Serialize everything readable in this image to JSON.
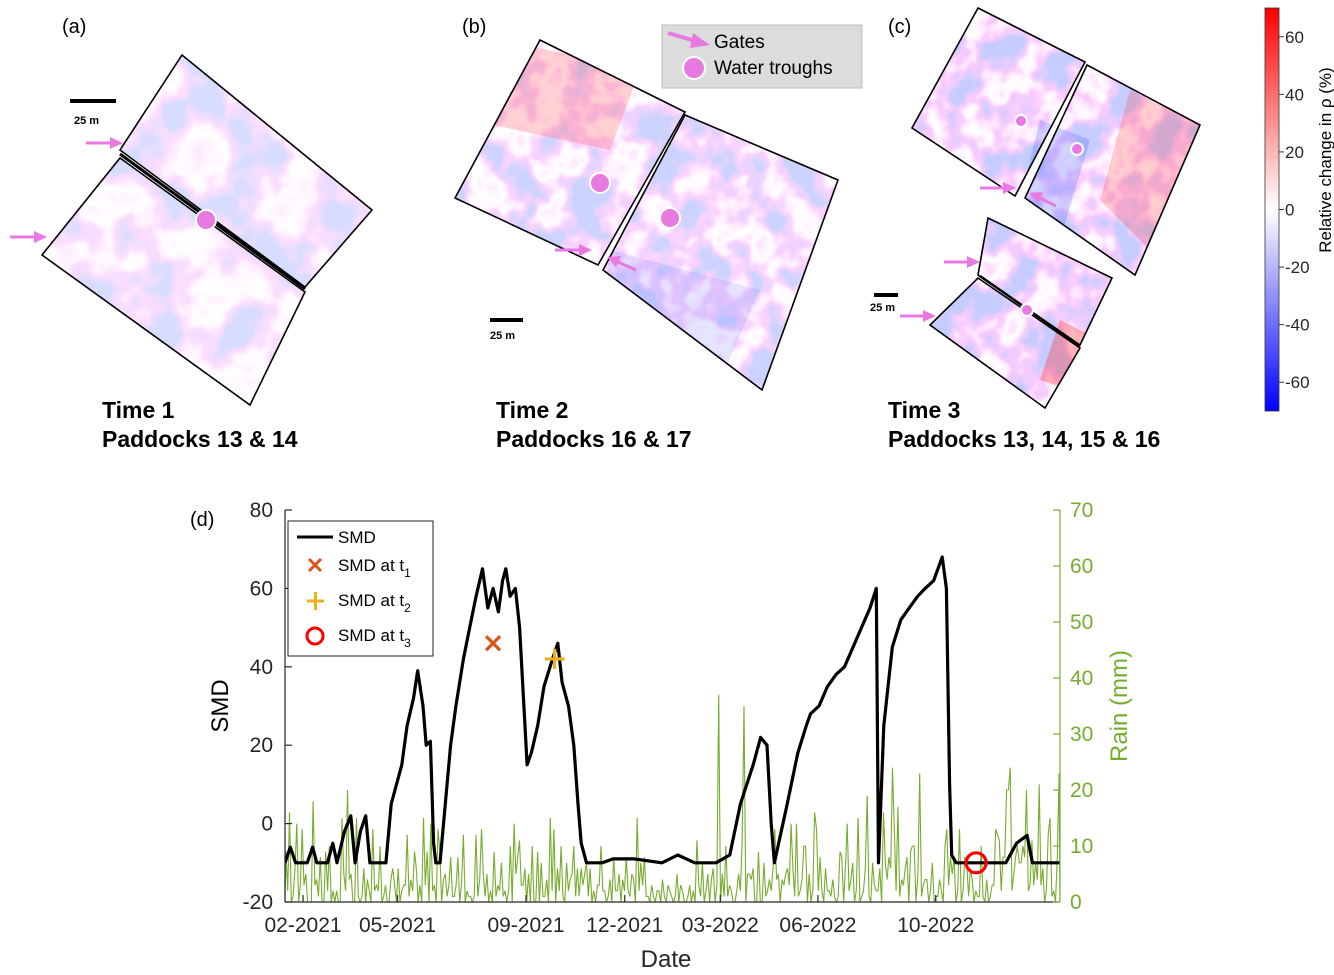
{
  "panels": [
    {
      "label": "(a)",
      "caption1": "Time 1",
      "caption2": "Paddocks 13 & 14",
      "scale": "25 m"
    },
    {
      "label": "(b)",
      "caption1": "Time 2",
      "caption2": "Paddocks 16 & 17",
      "scale": "25 m"
    },
    {
      "label": "(c)",
      "caption1": "Time 3",
      "caption2": "Paddocks 13, 14, 15 & 16",
      "scale": "25 m"
    }
  ],
  "map_legend": {
    "gates": "Gates",
    "troughs": "Water  troughs"
  },
  "colorbar": {
    "title": "Relative change in ρ (%)",
    "ticks": [
      "60",
      "40",
      "20",
      "0",
      "-20",
      "-40",
      "-60"
    ],
    "range": [
      -70,
      70
    ],
    "colors": {
      "low": "#0000ff",
      "mid": "#ffffff",
      "high": "#ff0000"
    }
  },
  "colors": {
    "gate": "#e879e0",
    "trough": "#e879e0",
    "smd": "#000000",
    "rain": "#77ac30",
    "t1": "#d95319",
    "t2": "#edb120",
    "t3": "#ff0000"
  },
  "chart_data": {
    "type": "line",
    "panel_label": "(d)",
    "xlabel": "Date",
    "ylabel": "SMD",
    "y2label": "Rain (mm)",
    "x_ticks": [
      "02-2021",
      "05-2021",
      "09-2021",
      "12-2021",
      "03-2022",
      "06-2022",
      "10-2022"
    ],
    "x_tick_dates": [
      "2021-02-01",
      "2021-05-01",
      "2021-08-30",
      "2021-12-01",
      "2022-03-01",
      "2022-06-01",
      "2022-09-20"
    ],
    "xlim": [
      "2021-01-15",
      "2023-01-15"
    ],
    "ylim": [
      -20,
      80
    ],
    "y_ticks": [
      "-20",
      "0",
      "20",
      "40",
      "60",
      "80"
    ],
    "y2lim": [
      0,
      70
    ],
    "y2_ticks": [
      "0",
      "10",
      "20",
      "30",
      "40",
      "50",
      "60",
      "70"
    ],
    "legend": {
      "position": "top-left",
      "entries": [
        "SMD",
        "SMD at t1",
        "SMD at t2",
        "SMD at t3"
      ]
    },
    "series": [
      {
        "name": "SMD",
        "axis": "left",
        "color": "#000000",
        "points": [
          [
            "2021-01-15",
            -10
          ],
          [
            "2021-01-20",
            -6
          ],
          [
            "2021-01-25",
            -10
          ],
          [
            "2021-02-05",
            -10
          ],
          [
            "2021-02-10",
            -6
          ],
          [
            "2021-02-14",
            -10
          ],
          [
            "2021-02-24",
            -10
          ],
          [
            "2021-03-01",
            -5
          ],
          [
            "2021-03-05",
            -10
          ],
          [
            "2021-03-12",
            -2
          ],
          [
            "2021-03-18",
            2
          ],
          [
            "2021-03-22",
            -10
          ],
          [
            "2021-03-27",
            -2
          ],
          [
            "2021-04-01",
            2
          ],
          [
            "2021-04-05",
            -10
          ],
          [
            "2021-04-20",
            -10
          ],
          [
            "2021-04-25",
            5
          ],
          [
            "2021-04-30",
            10
          ],
          [
            "2021-05-05",
            15
          ],
          [
            "2021-05-10",
            25
          ],
          [
            "2021-05-16",
            32
          ],
          [
            "2021-05-20",
            39
          ],
          [
            "2021-05-25",
            30
          ],
          [
            "2021-05-28",
            20
          ],
          [
            "2021-06-01",
            21
          ],
          [
            "2021-06-04",
            -5
          ],
          [
            "2021-06-06",
            -10
          ],
          [
            "2021-06-10",
            -10
          ],
          [
            "2021-06-15",
            5
          ],
          [
            "2021-06-20",
            20
          ],
          [
            "2021-06-25",
            30
          ],
          [
            "2021-07-02",
            42
          ],
          [
            "2021-07-08",
            50
          ],
          [
            "2021-07-14",
            58
          ],
          [
            "2021-07-20",
            65
          ],
          [
            "2021-07-25",
            55
          ],
          [
            "2021-07-30",
            60
          ],
          [
            "2021-08-04",
            54
          ],
          [
            "2021-08-08",
            62
          ],
          [
            "2021-08-11",
            65
          ],
          [
            "2021-08-15",
            58
          ],
          [
            "2021-08-20",
            60
          ],
          [
            "2021-08-24",
            50
          ],
          [
            "2021-08-28",
            30
          ],
          [
            "2021-08-31",
            15
          ],
          [
            "2021-09-04",
            18
          ],
          [
            "2021-09-10",
            25
          ],
          [
            "2021-09-16",
            35
          ],
          [
            "2021-09-24",
            42
          ],
          [
            "2021-09-29",
            46
          ],
          [
            "2021-10-03",
            36
          ],
          [
            "2021-10-09",
            30
          ],
          [
            "2021-10-14",
            20
          ],
          [
            "2021-10-18",
            5
          ],
          [
            "2021-10-21",
            -5
          ],
          [
            "2021-10-26",
            -10
          ],
          [
            "2021-11-10",
            -10
          ],
          [
            "2021-11-20",
            -9
          ],
          [
            "2021-12-10",
            -9
          ],
          [
            "2022-01-05",
            -10
          ],
          [
            "2022-01-20",
            -8
          ],
          [
            "2022-02-05",
            -10
          ],
          [
            "2022-02-25",
            -10
          ],
          [
            "2022-03-10",
            -8
          ],
          [
            "2022-03-20",
            5
          ],
          [
            "2022-04-01",
            15
          ],
          [
            "2022-04-08",
            22
          ],
          [
            "2022-04-14",
            20
          ],
          [
            "2022-04-18",
            0
          ],
          [
            "2022-04-21",
            -10
          ],
          [
            "2022-05-03",
            5
          ],
          [
            "2022-05-13",
            18
          ],
          [
            "2022-05-21",
            25
          ],
          [
            "2022-05-25",
            28
          ],
          [
            "2022-06-02",
            30
          ],
          [
            "2022-06-10",
            35
          ],
          [
            "2022-06-18",
            38
          ],
          [
            "2022-06-26",
            40
          ],
          [
            "2022-07-04",
            45
          ],
          [
            "2022-07-12",
            50
          ],
          [
            "2022-07-20",
            55
          ],
          [
            "2022-07-26",
            60
          ],
          [
            "2022-07-28",
            -10
          ],
          [
            "2022-08-02",
            25
          ],
          [
            "2022-08-10",
            45
          ],
          [
            "2022-08-18",
            52
          ],
          [
            "2022-08-26",
            55
          ],
          [
            "2022-09-03",
            58
          ],
          [
            "2022-09-10",
            60
          ],
          [
            "2022-09-18",
            62
          ],
          [
            "2022-09-26",
            68
          ],
          [
            "2022-09-30",
            60
          ],
          [
            "2022-10-03",
            10
          ],
          [
            "2022-10-05",
            -8
          ],
          [
            "2022-10-09",
            -10
          ],
          [
            "2022-10-20",
            -10
          ],
          [
            "2022-11-10",
            -10
          ],
          [
            "2022-11-25",
            -10
          ],
          [
            "2022-12-05",
            -5
          ],
          [
            "2022-12-15",
            -3
          ],
          [
            "2022-12-20",
            -10
          ],
          [
            "2023-01-15",
            -10
          ]
        ]
      },
      {
        "name": "Rain",
        "axis": "right",
        "color": "#77ac30",
        "values_mm": [
          9,
          2,
          16,
          0,
          1,
          6,
          14,
          0,
          3,
          13,
          3,
          5,
          0,
          0,
          0,
          18,
          3,
          4,
          1,
          8,
          0,
          0,
          9,
          2,
          10,
          0,
          2,
          0,
          2,
          0,
          0,
          15,
          5,
          2,
          20,
          4,
          5,
          0,
          0,
          15,
          1,
          0,
          1,
          6,
          0,
          4,
          2,
          0,
          13,
          2,
          3,
          2,
          10,
          0,
          1,
          3,
          0,
          0,
          4,
          6,
          3,
          0,
          6,
          0,
          2,
          3,
          3,
          12,
          1,
          4,
          2,
          9,
          6,
          0,
          3,
          0,
          15,
          3,
          9,
          0,
          14,
          2,
          3,
          0,
          13,
          9,
          0,
          4,
          5,
          1,
          3,
          8,
          1,
          1,
          3,
          8,
          0,
          3,
          12,
          0,
          2,
          1,
          1,
          0,
          1,
          12,
          1,
          4,
          13,
          5,
          1,
          5,
          0,
          2,
          0,
          9,
          1,
          3,
          2,
          7,
          1,
          2,
          0,
          2,
          10,
          0,
          14,
          5,
          8,
          11,
          3,
          3,
          6,
          0,
          5,
          0,
          10,
          0,
          0,
          9,
          0,
          7,
          1,
          1,
          4,
          0,
          15,
          2,
          13,
          0,
          6,
          2,
          10,
          1,
          0,
          7,
          2,
          4,
          5,
          10,
          1,
          6,
          1,
          6,
          3,
          5,
          7,
          1,
          6,
          0,
          2,
          0,
          3,
          3,
          10,
          2,
          2,
          0,
          1,
          4,
          0,
          8,
          2,
          2,
          5,
          0,
          4,
          2,
          8,
          2,
          1,
          5,
          4,
          0,
          15,
          2,
          7,
          3,
          8,
          1,
          1,
          0,
          3,
          1,
          0,
          2,
          2,
          0,
          4,
          1,
          0,
          3,
          2,
          1,
          0,
          1,
          5,
          0,
          3,
          2,
          0,
          0,
          1,
          3,
          0,
          2,
          0,
          11,
          3,
          1,
          7,
          0,
          2,
          5,
          0,
          4,
          6,
          0,
          3,
          37,
          0,
          5,
          1,
          10,
          1,
          3,
          2,
          0,
          0,
          2,
          5,
          2,
          11,
          35,
          0,
          5,
          5,
          4,
          6,
          0,
          0,
          9,
          0,
          0,
          7,
          1,
          2,
          4,
          2,
          6,
          13,
          4,
          5,
          0,
          4,
          3,
          5,
          6,
          3,
          14,
          6,
          1,
          14,
          1,
          2,
          4,
          10,
          10,
          0,
          5,
          0,
          2,
          16,
          13,
          2,
          8,
          2,
          0,
          6,
          2,
          2,
          1,
          4,
          1,
          0,
          1,
          9,
          8,
          0,
          6,
          14,
          2,
          4,
          7,
          0,
          2,
          15,
          0,
          1,
          2,
          6,
          19,
          1,
          0,
          7,
          3,
          2,
          2,
          6,
          0,
          16,
          7,
          4,
          8,
          6,
          24,
          13,
          2,
          17,
          1,
          4,
          3,
          6,
          8,
          0,
          9,
          10,
          10,
          0,
          5,
          23,
          1,
          3,
          4,
          4,
          0,
          2,
          7,
          0,
          1,
          1,
          4,
          2,
          0,
          10,
          13,
          3,
          8,
          5,
          8,
          0,
          2,
          13,
          0,
          2,
          8,
          7,
          1,
          6,
          4,
          0,
          2,
          1,
          1,
          10,
          1,
          0,
          4,
          0,
          1,
          3,
          3,
          13,
          12,
          11,
          2,
          8,
          8,
          20,
          20,
          24,
          2,
          5,
          8,
          10,
          7,
          7,
          10,
          8,
          20,
          2,
          3,
          11,
          3,
          7,
          4,
          21,
          3,
          6,
          0,
          2,
          12,
          15,
          1,
          2,
          0,
          8,
          23
        ]
      }
    ],
    "markers": [
      {
        "name": "SMD at t1",
        "symbol": "x",
        "date": "2021-07-30",
        "value": 46,
        "color": "#d95319"
      },
      {
        "name": "SMD at t2",
        "symbol": "+",
        "date": "2021-09-26",
        "value": 42,
        "color": "#edb120"
      },
      {
        "name": "SMD at t3",
        "symbol": "o",
        "date": "2022-10-28",
        "value": -10,
        "color": "#ff0000"
      }
    ]
  }
}
